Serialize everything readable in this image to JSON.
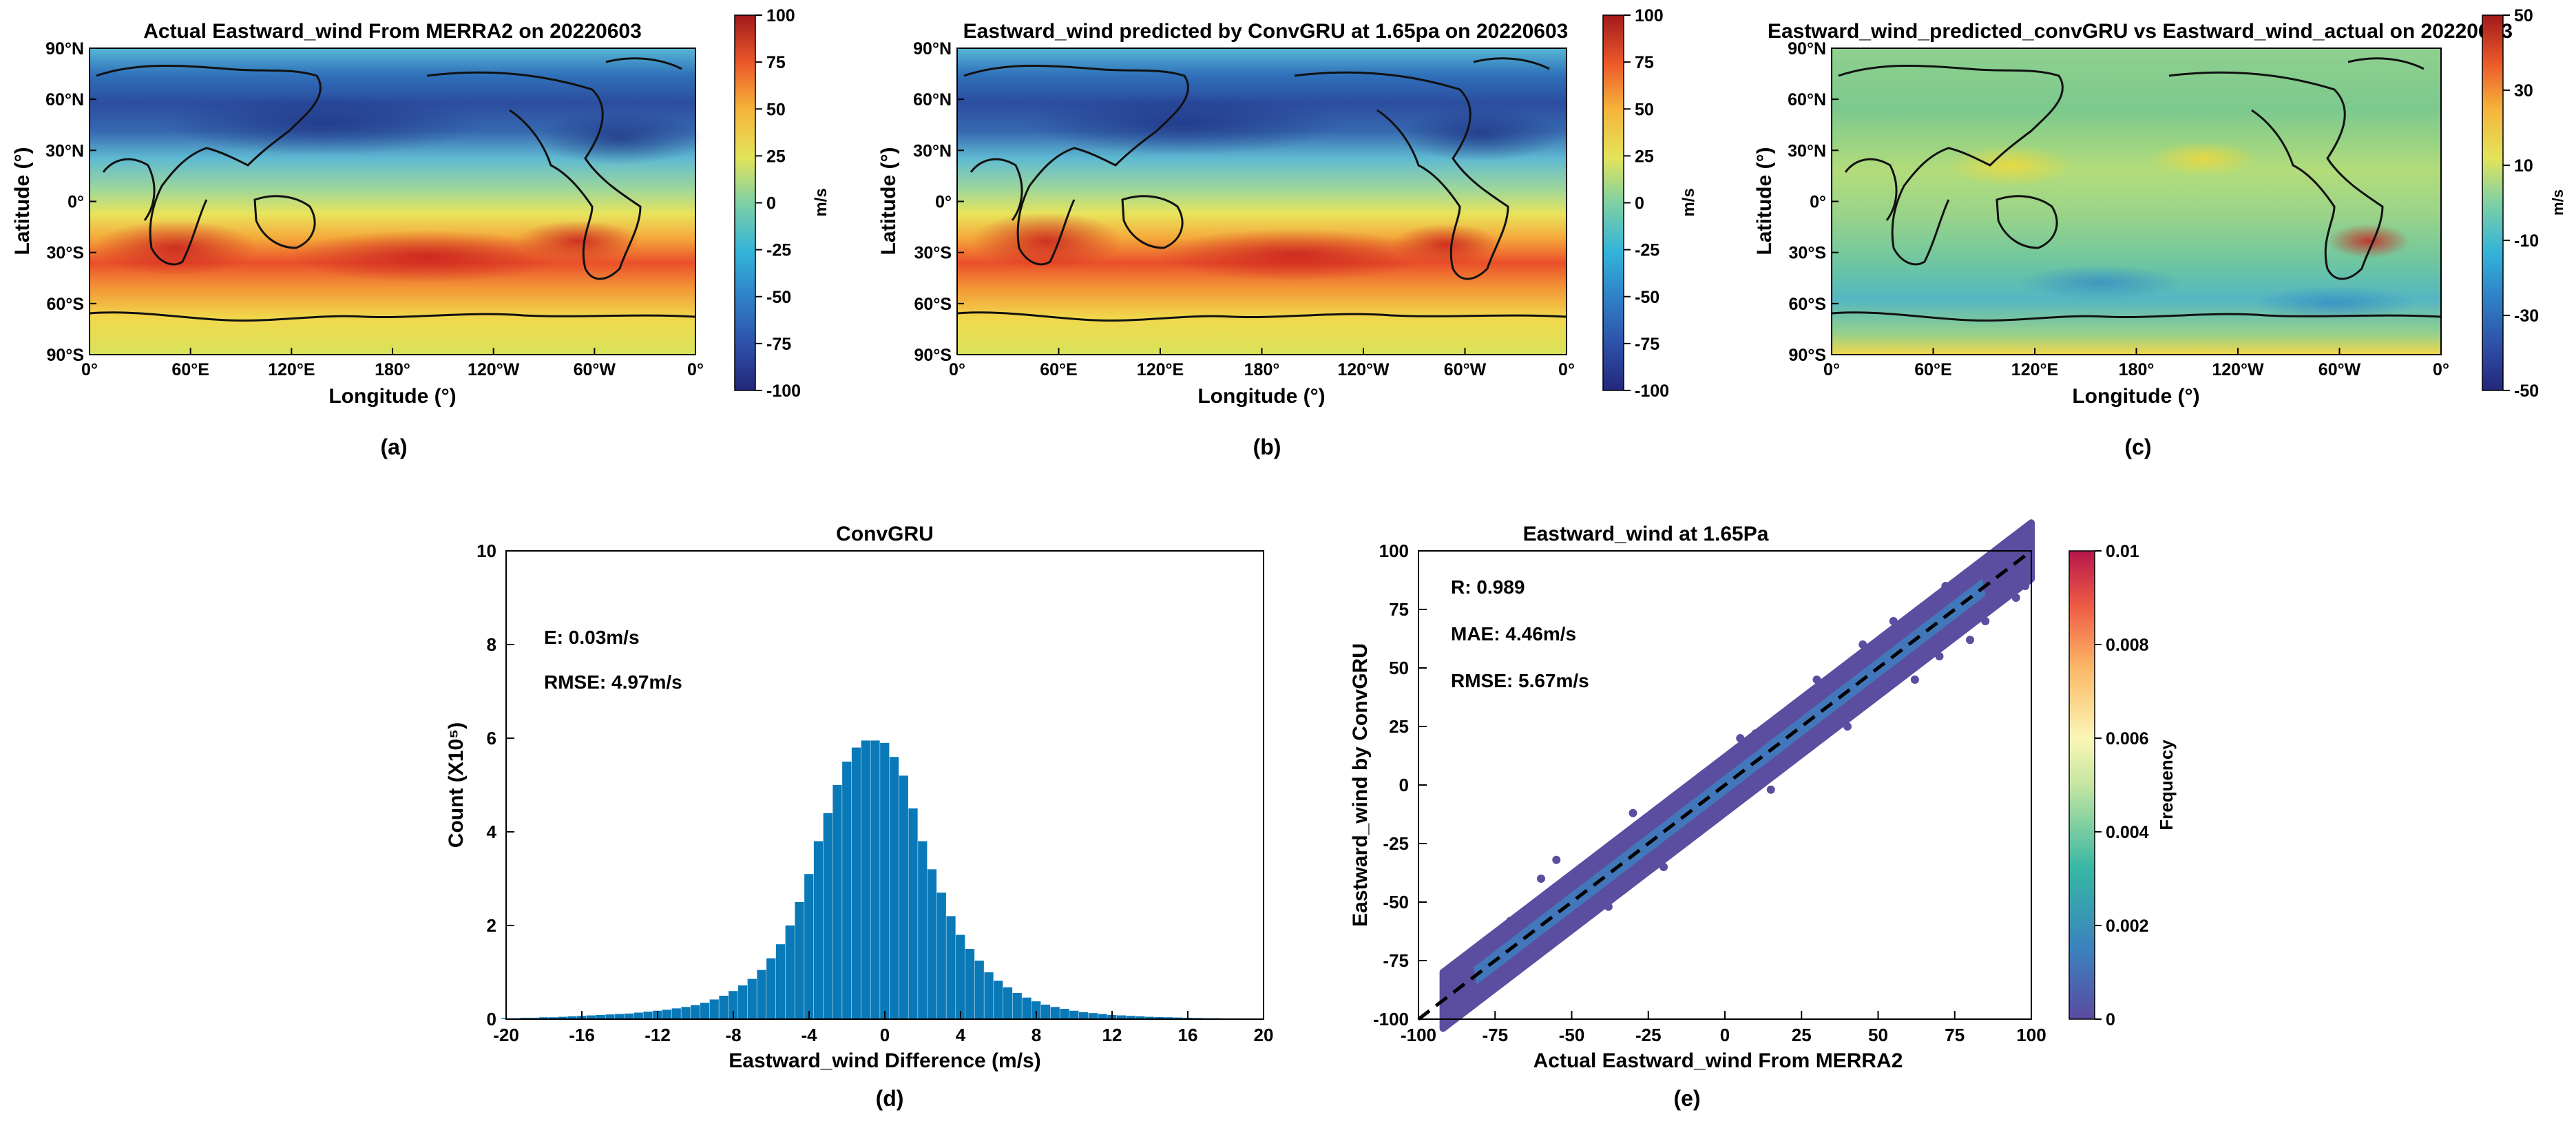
{
  "panels": {
    "a": {
      "label": "(a)",
      "title": "Actual Eastward_wind From MERRA2 on 20220603",
      "xlabel": "Longitude (°)",
      "ylabel": "Latitude (°)",
      "x_ticks": [
        "0°",
        "60°E",
        "120°E",
        "180°",
        "120°W",
        "60°W",
        "0°"
      ],
      "y_ticks": [
        "90°N",
        "60°N",
        "30°N",
        "0°",
        "30°S",
        "60°S",
        "90°S"
      ],
      "colorbar": {
        "unit": "m/s",
        "ticks": [
          "100",
          "75",
          "50",
          "25",
          "0",
          "-25",
          "-50",
          "-75",
          "-100"
        ],
        "range": [
          -100,
          100
        ]
      }
    },
    "b": {
      "label": "(b)",
      "title": "Eastward_wind predicted by ConvGRU at 1.65pa on 20220603",
      "xlabel": "Longitude (°)",
      "ylabel": "Latitude (°)",
      "x_ticks": [
        "0°",
        "60°E",
        "120°E",
        "180°",
        "120°W",
        "60°W",
        "0°"
      ],
      "y_ticks": [
        "90°N",
        "60°N",
        "30°N",
        "0°",
        "30°S",
        "60°S",
        "90°S"
      ],
      "colorbar": {
        "unit": "m/s",
        "ticks": [
          "100",
          "75",
          "50",
          "25",
          "0",
          "-25",
          "-50",
          "-75",
          "-100"
        ],
        "range": [
          -100,
          100
        ]
      }
    },
    "c": {
      "label": "(c)",
      "title": "Eastward_wind_predicted_convGRU vs Eastward_wind_actual on 20220603",
      "xlabel": "Longitude (°)",
      "ylabel": "Latitude (°)",
      "x_ticks": [
        "0°",
        "60°E",
        "120°E",
        "180°",
        "120°W",
        "60°W",
        "0°"
      ],
      "y_ticks": [
        "90°N",
        "60°N",
        "30°N",
        "0°",
        "30°S",
        "60°S",
        "90°S"
      ],
      "colorbar": {
        "unit": "m/s",
        "ticks": [
          "50",
          "30",
          "10",
          "-10",
          "-30",
          "-50"
        ],
        "range": [
          -50,
          50
        ]
      }
    },
    "d": {
      "label": "(d)",
      "stats": [
        "E: 0.03m/s",
        "RMSE: 4.97m/s"
      ]
    },
    "e": {
      "label": "(e)",
      "stats": [
        "R: 0.989",
        "MAE: 4.46m/s",
        "RMSE: 5.67m/s"
      ],
      "colorbar": {
        "label": "Frequency",
        "ticks": [
          "0.01",
          "0.008",
          "0.006",
          "0.004",
          "0.002",
          "0"
        ],
        "range": [
          0,
          0.01
        ]
      }
    }
  },
  "chart_data": [
    {
      "type": "heatmap",
      "title": "Actual Eastward_wind From MERRA2 on 20220603",
      "xlabel": "Longitude (°)",
      "ylabel": "Latitude (°)",
      "x_range": [
        0,
        360
      ],
      "y_range": [
        -90,
        90
      ],
      "colorbar_range": [
        -100,
        100
      ],
      "colorbar_unit": "m/s",
      "zonal_mean_lat": [
        80,
        60,
        45,
        30,
        15,
        0,
        -15,
        -30,
        -45,
        -60,
        -75,
        -85
      ],
      "zonal_mean_u": [
        -40,
        -75,
        -80,
        -65,
        -35,
        -5,
        30,
        60,
        55,
        30,
        15,
        10
      ]
    },
    {
      "type": "heatmap",
      "title": "Eastward_wind predicted by ConvGRU at 1.65pa on 20220603",
      "xlabel": "Longitude (°)",
      "ylabel": "Latitude (°)",
      "x_range": [
        0,
        360
      ],
      "y_range": [
        -90,
        90
      ],
      "colorbar_range": [
        -100,
        100
      ],
      "colorbar_unit": "m/s",
      "zonal_mean_lat": [
        80,
        60,
        45,
        30,
        15,
        0,
        -15,
        -30,
        -45,
        -60,
        -75,
        -85
      ],
      "zonal_mean_u": [
        -40,
        -75,
        -80,
        -65,
        -35,
        -5,
        30,
        58,
        55,
        30,
        15,
        10
      ]
    },
    {
      "type": "heatmap",
      "title": "Eastward_wind_predicted_convGRU vs Eastward_wind_actual on 20220603",
      "xlabel": "Longitude (°)",
      "ylabel": "Latitude (°)",
      "x_range": [
        0,
        360
      ],
      "y_range": [
        -90,
        90
      ],
      "colorbar_range": [
        -50,
        50
      ],
      "colorbar_unit": "m/s",
      "zonal_mean_lat": [
        80,
        60,
        45,
        30,
        15,
        0,
        -15,
        -30,
        -45,
        -60,
        -75,
        -85
      ],
      "zonal_mean_u": [
        0,
        2,
        -2,
        4,
        5,
        3,
        2,
        -3,
        -4,
        -8,
        -5,
        25
      ]
    },
    {
      "type": "bar",
      "title": "ConvGRU",
      "xlabel": "Eastward_wind Difference (m/s)",
      "ylabel": "Count (X10⁵)",
      "xlim": [
        -20,
        20
      ],
      "ylim": [
        0,
        10
      ],
      "x_ticks": [
        "-20",
        "-16",
        "-12",
        "-8",
        "-4",
        "0",
        "4",
        "8",
        "12",
        "16",
        "20"
      ],
      "y_ticks": [
        "0",
        "2",
        "4",
        "6",
        "8",
        "10"
      ],
      "bin_width": 0.5,
      "bin_centers": [
        -20,
        -19.5,
        -19,
        -18.5,
        -18,
        -17.5,
        -17,
        -16.5,
        -16,
        -15.5,
        -15,
        -14.5,
        -14,
        -13.5,
        -13,
        -12.5,
        -12,
        -11.5,
        -11,
        -10.5,
        -10,
        -9.5,
        -9,
        -8.5,
        -8,
        -7.5,
        -7,
        -6.5,
        -6,
        -5.5,
        -5,
        -4.5,
        -4,
        -3.5,
        -3,
        -2.5,
        -2,
        -1.5,
        -1,
        -0.5,
        0,
        0.5,
        1,
        1.5,
        2,
        2.5,
        3,
        3.5,
        4,
        4.5,
        5,
        5.5,
        6,
        6.5,
        7,
        7.5,
        8,
        8.5,
        9,
        9.5,
        10,
        10.5,
        11,
        11.5,
        12,
        12.5,
        13,
        13.5,
        14,
        14.5,
        15,
        15.5,
        16,
        16.5,
        17,
        17.5,
        18,
        18.5,
        19,
        19.5
      ],
      "values": [
        0.02,
        0.02,
        0.03,
        0.03,
        0.04,
        0.04,
        0.05,
        0.06,
        0.07,
        0.08,
        0.09,
        0.1,
        0.11,
        0.12,
        0.14,
        0.16,
        0.18,
        0.2,
        0.23,
        0.26,
        0.3,
        0.35,
        0.42,
        0.5,
        0.6,
        0.72,
        0.86,
        1.05,
        1.3,
        1.6,
        2.0,
        2.5,
        3.1,
        3.8,
        4.4,
        5.0,
        5.5,
        5.8,
        5.95,
        5.95,
        5.9,
        5.6,
        5.2,
        4.5,
        3.8,
        3.2,
        2.7,
        2.2,
        1.8,
        1.5,
        1.25,
        1.0,
        0.82,
        0.68,
        0.56,
        0.46,
        0.38,
        0.31,
        0.26,
        0.22,
        0.18,
        0.15,
        0.13,
        0.11,
        0.09,
        0.08,
        0.07,
        0.06,
        0.05,
        0.045,
        0.04,
        0.035,
        0.03,
        0.025,
        0.02,
        0.02,
        0.015,
        0.015,
        0.01,
        0.01
      ]
    },
    {
      "type": "scatter",
      "title": "Eastward_wind at 1.65Pa",
      "xlabel": "Actual Eastward_wind From MERRA2",
      "ylabel": "Eastward_wind by ConvGRU",
      "xlim": [
        -100,
        100
      ],
      "ylim": [
        -100,
        100
      ],
      "x_ticks": [
        "-100",
        "-75",
        "-50",
        "-25",
        "0",
        "25",
        "50",
        "75",
        "100"
      ],
      "y_ticks": [
        "-100",
        "-75",
        "-50",
        "-25",
        "0",
        "25",
        "50",
        "75",
        "100"
      ],
      "one_to_one_line": true,
      "R": 0.989,
      "MAE_m_s": 4.46,
      "RMSE_m_s": 5.67,
      "colorbar_label": "Frequency",
      "colorbar_range": [
        0,
        0.01
      ],
      "point_cloud_range_x": [
        -92,
        100
      ],
      "point_cloud_halfwidth_y": 12
    }
  ]
}
